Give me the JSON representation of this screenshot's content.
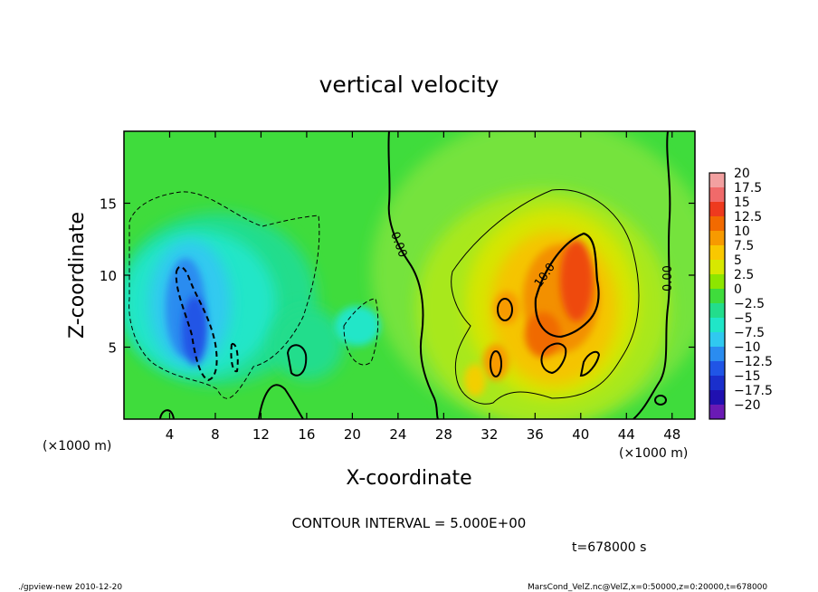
{
  "chart_data": {
    "type": "heatmap",
    "title": "vertical velocity",
    "xlabel": "X-coordinate",
    "ylabel": "Z-coordinate",
    "x_unit_left": "(×1000 m)",
    "x_unit_right": "(×1000 m)",
    "xlim": [
      0,
      50
    ],
    "ylim": [
      0,
      20
    ],
    "x_ticks": [
      "4",
      "8",
      "12",
      "16",
      "20",
      "24",
      "28",
      "32",
      "36",
      "40",
      "44",
      "48"
    ],
    "x_tick_values": [
      4,
      8,
      12,
      16,
      20,
      24,
      28,
      32,
      36,
      40,
      44,
      48
    ],
    "y_ticks": [
      "5",
      "10",
      "15"
    ],
    "y_tick_values": [
      5,
      10,
      15
    ],
    "colorbar": {
      "labels": [
        "20",
        "17.5",
        "15",
        "12.5",
        "10",
        "7.5",
        "5",
        "2.5",
        "0",
        "−2.5",
        "−5",
        "−7.5",
        "−10",
        "−12.5",
        "−15",
        "−17.5",
        "−20"
      ],
      "colors": [
        "#f2a0a0",
        "#f06a6a",
        "#ee3a1e",
        "#f26a00",
        "#f79a00",
        "#f9c800",
        "#d7e800",
        "#8de600",
        "#3fdc3c",
        "#23dd8c",
        "#20e6c8",
        "#30c9f0",
        "#2a8cf0",
        "#2055e6",
        "#1a2fcc",
        "#2010b0",
        "#6a1ab4"
      ]
    },
    "contour_labels": [
      "0.00",
      "10.0",
      "0.00"
    ],
    "contour_interval_text": "CONTOUR INTERVAL = 5.000E+00",
    "time_text": "t=678000 s"
  },
  "footer": {
    "left": "./gpview-new  2010-12-20",
    "right": "MarsCond_VelZ.nc@VelZ,x=0:50000,z=0:20000,t=678000"
  }
}
